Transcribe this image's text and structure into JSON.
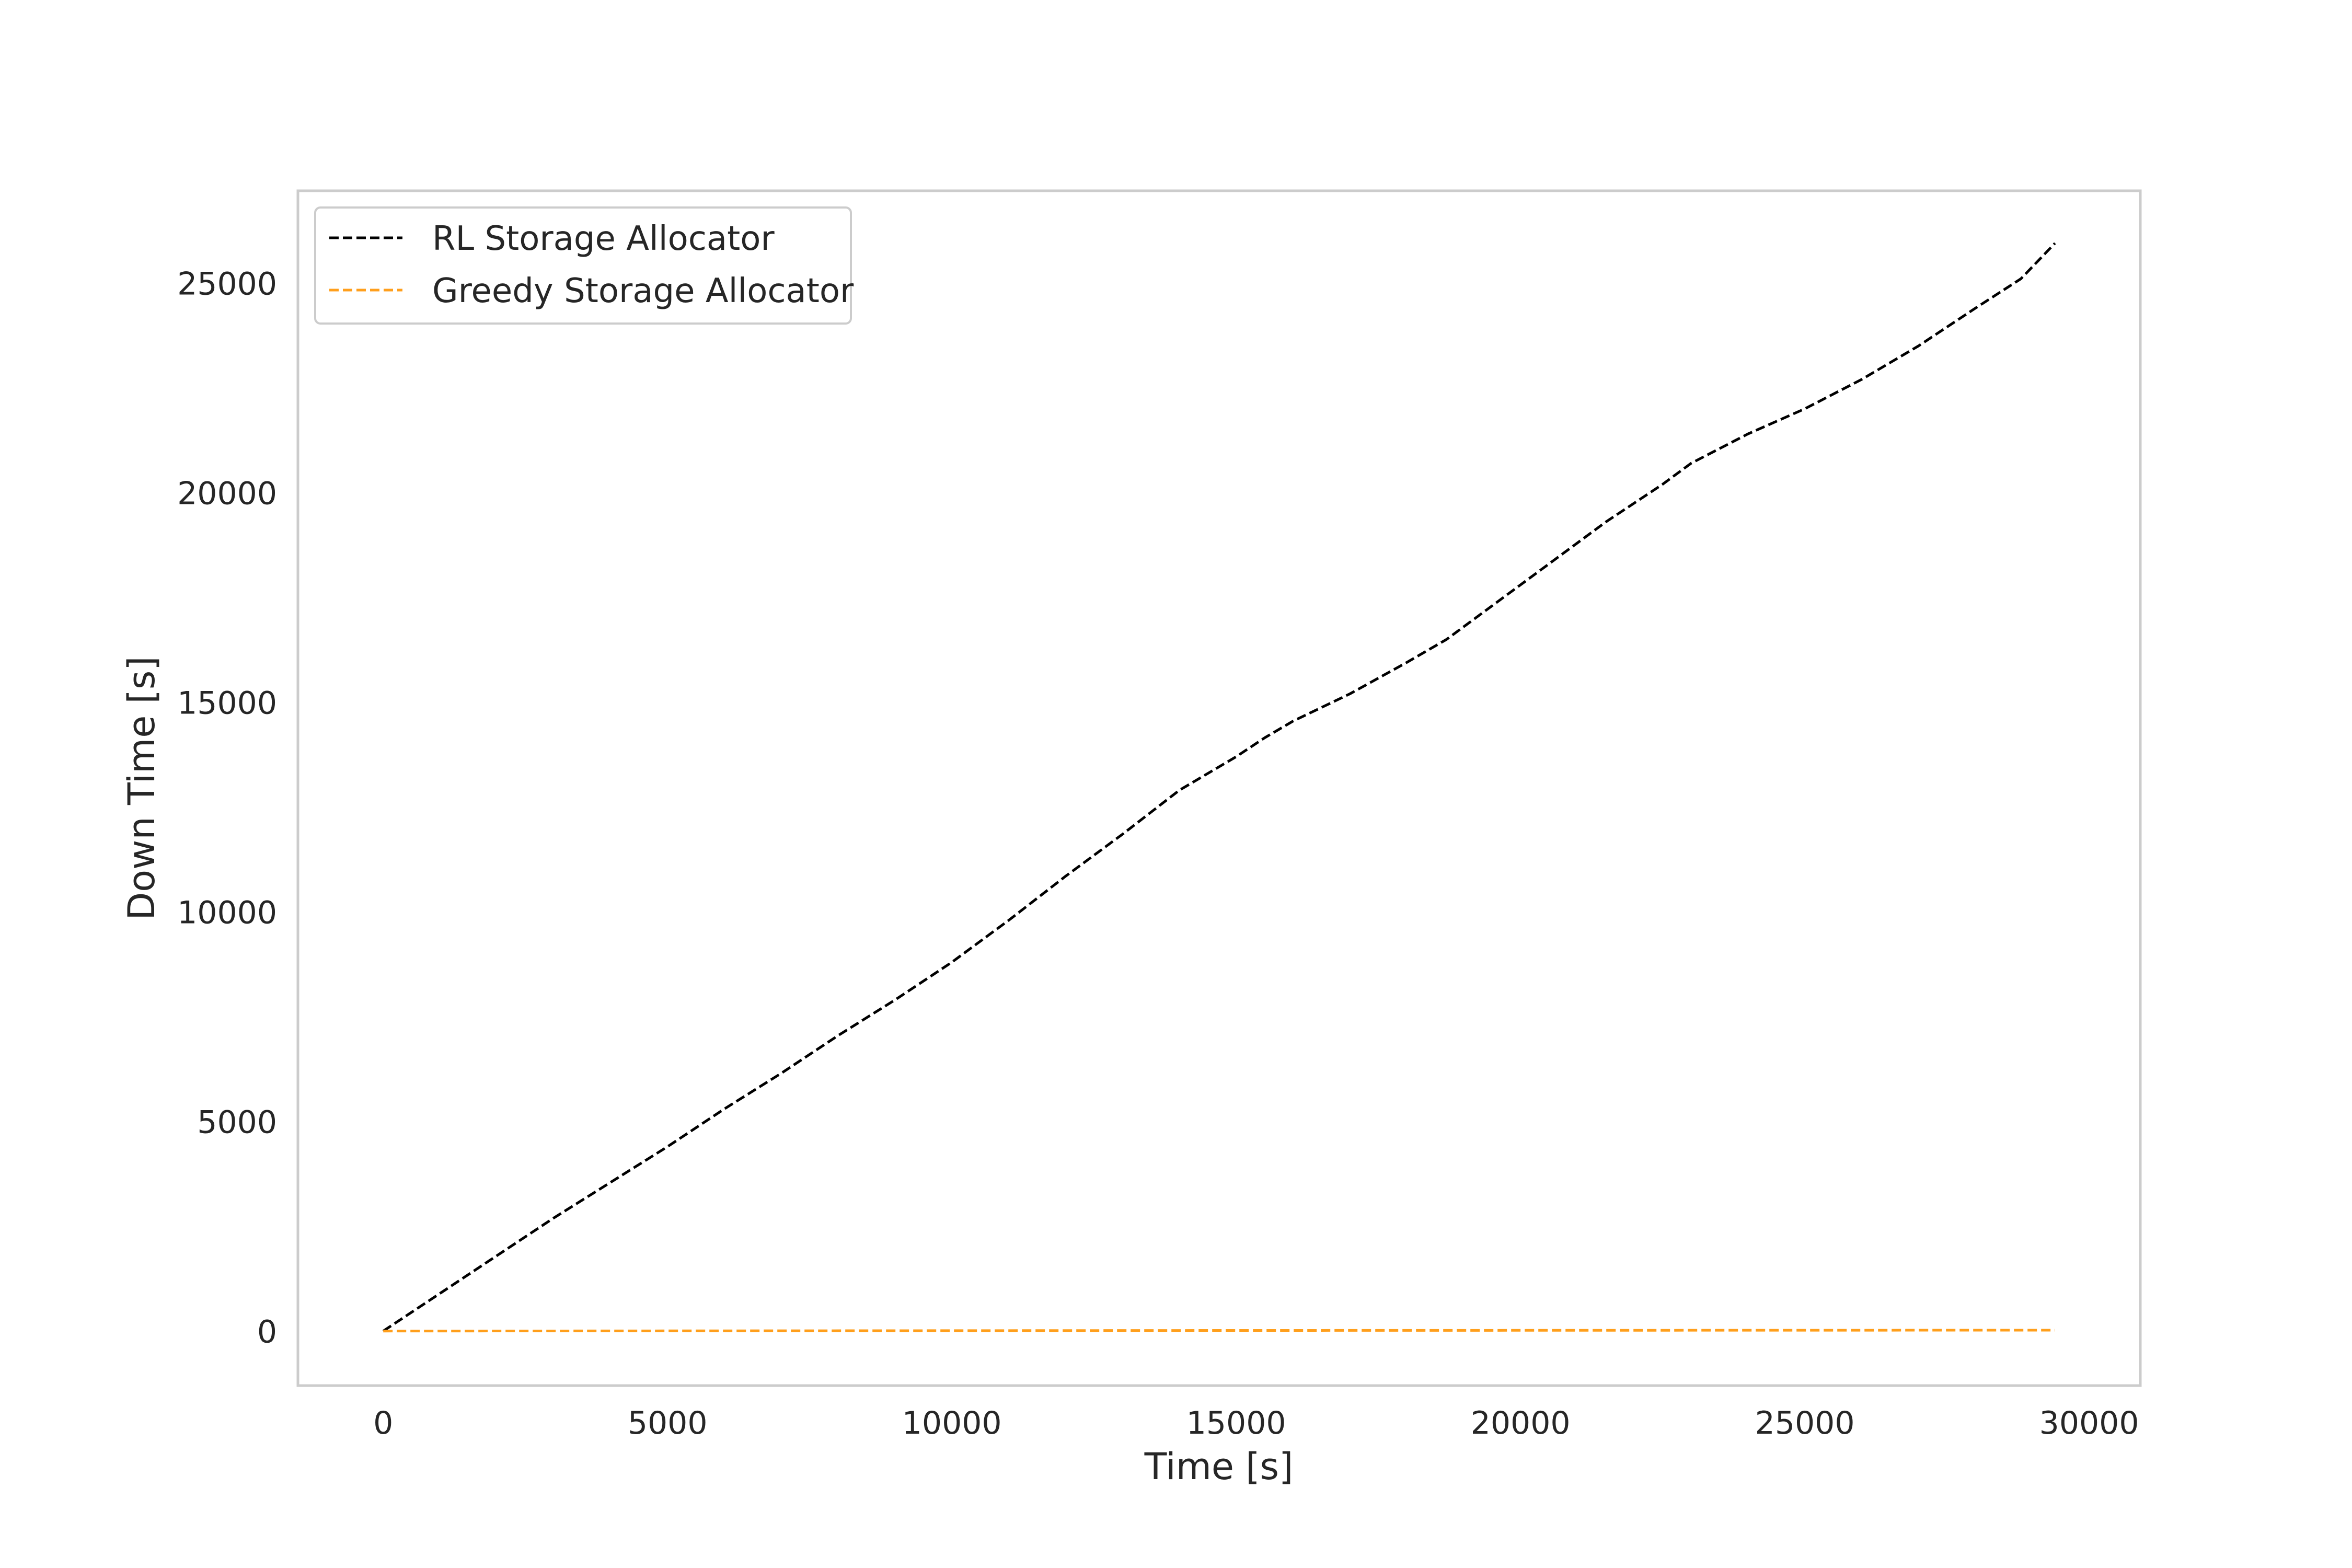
{
  "chart_data": {
    "type": "line",
    "title": "",
    "xlabel": "Time [s]",
    "ylabel": "Down Time [s]",
    "xlim": [
      -1500,
      30900
    ],
    "ylim": [
      -1300,
      27200
    ],
    "xticks": [
      0,
      5000,
      10000,
      15000,
      20000,
      25000,
      30000
    ],
    "yticks": [
      0,
      5000,
      10000,
      15000,
      20000,
      25000
    ],
    "xtick_labels": [
      "0",
      "5000",
      "10000",
      "15000",
      "20000",
      "25000",
      "30000"
    ],
    "ytick_labels": [
      "0",
      "5000",
      "10000",
      "15000",
      "20000",
      "25000"
    ],
    "grid": false,
    "legend_position": "top-left",
    "series": [
      {
        "name": "RL Storage Allocator",
        "color": "#000000",
        "line_style": "dashed",
        "x": [
          0,
          1000,
          2000,
          3000,
          4000,
          5000,
          6000,
          7000,
          8000,
          9000,
          10000,
          11000,
          12000,
          13000,
          14000,
          15000,
          15500,
          16000,
          17000,
          18000,
          18700,
          19500,
          20500,
          21500,
          22000,
          22500,
          23000,
          24000,
          25000,
          26000,
          27000,
          28000,
          28800,
          29400
        ],
        "y": [
          0,
          900,
          1800,
          2700,
          3550,
          4400,
          5300,
          6150,
          7050,
          7900,
          8800,
          9800,
          10850,
          11850,
          12900,
          13700,
          14150,
          14550,
          15200,
          15950,
          16500,
          17300,
          18300,
          19300,
          19750,
          20200,
          20700,
          21400,
          22000,
          22700,
          23500,
          24400,
          25100,
          25950
        ]
      },
      {
        "name": "Greedy Storage Allocator",
        "color": "#ff9f1c",
        "line_style": "dashed",
        "x": [
          0,
          5000,
          10000,
          15000,
          20000,
          25000,
          29400
        ],
        "y": [
          0,
          5,
          10,
          15,
          18,
          20,
          22
        ]
      }
    ]
  }
}
